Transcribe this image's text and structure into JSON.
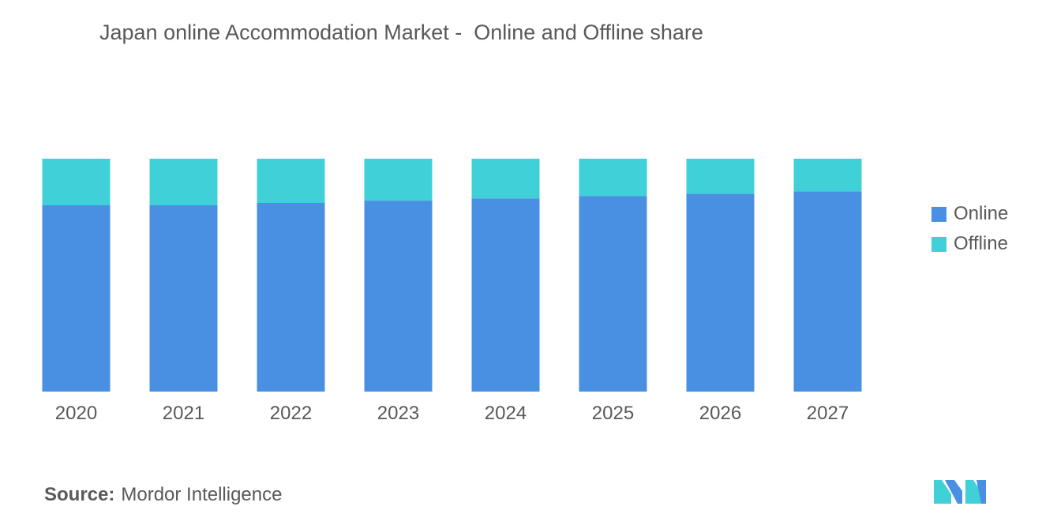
{
  "title": "Japan online Accommodation Market -  Online and Offline share",
  "legend": [
    {
      "name": "Online",
      "color": "#4a90e2"
    },
    {
      "name": "Offline",
      "color": "#40d0d8"
    }
  ],
  "source": {
    "label": "Source:",
    "value": "Mordor Intelligence"
  },
  "logo": {
    "icon": "mordor-intelligence-logo",
    "colors": [
      "#40d0d8",
      "#4a90e2"
    ]
  },
  "chart_data": {
    "type": "bar",
    "stacked": true,
    "categories": [
      "2020",
      "2021",
      "2022",
      "2023",
      "2024",
      "2025",
      "2026",
      "2027"
    ],
    "series": [
      {
        "name": "Online",
        "color": "#4a90e2",
        "values": [
          80,
          80,
          81,
          82,
          83,
          84,
          85,
          86
        ]
      },
      {
        "name": "Offline",
        "color": "#40d0d8",
        "values": [
          20,
          20,
          19,
          18,
          17,
          16,
          15,
          14
        ]
      }
    ],
    "ylim": [
      0,
      100
    ],
    "grid": false,
    "legend_position": "right",
    "xlabel": "",
    "ylabel": ""
  }
}
